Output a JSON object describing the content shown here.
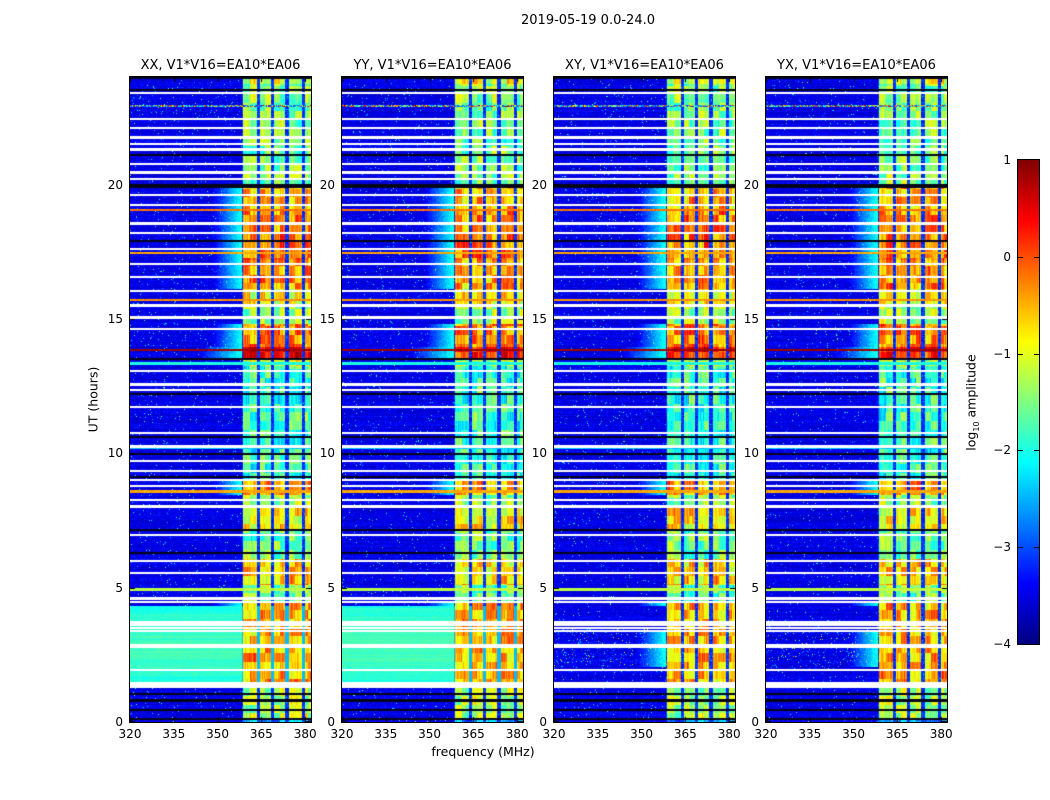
{
  "figure": {
    "suptitle": "2019-05-19 0.0-24.0"
  },
  "chart_data": {
    "type": "heatmap",
    "suptitle": "2019-05-19 0.0-24.0",
    "panels": [
      {
        "pol": "XX",
        "label": "XX, V1*V16=EA10*EA06",
        "correlation": "auto",
        "sun_response": true
      },
      {
        "pol": "YY",
        "label": "YY, V1*V16=EA10*EA06",
        "correlation": "auto",
        "sun_response": true
      },
      {
        "pol": "XY",
        "label": "XY, V1*V16=EA10*EA06",
        "correlation": "cross",
        "sun_response": false
      },
      {
        "pol": "YX",
        "label": "YX, V1*V16=EA10*EA06",
        "correlation": "cross",
        "sun_response": false
      }
    ],
    "x_axis": {
      "label": "frequency (MHz)",
      "ticks": [
        320,
        335,
        350,
        365,
        380
      ],
      "range": [
        320,
        382
      ]
    },
    "y_axis": {
      "label": "UT (hours)",
      "ticks": [
        0,
        5,
        10,
        15,
        20
      ],
      "range": [
        0,
        24
      ]
    },
    "colorbar": {
      "label": "log10 amplitude",
      "label_prefix": "log",
      "label_sub": "10",
      "label_suffix": " amplitude",
      "tick_values": [
        1,
        0,
        -1,
        -2,
        -3,
        -4
      ],
      "tick_labels": [
        "1",
        "0",
        "−1",
        "−2",
        "−3",
        "−4"
      ],
      "range": [
        -4,
        1
      ],
      "colormap": "jet"
    },
    "background_level": -3.5,
    "noise_sigma": 0.3,
    "sun_interval": {
      "t0": 1.47,
      "t1": 4.3,
      "level": -2.0
    },
    "rfi_band": {
      "f_start": 358.4,
      "f_end": 382,
      "columns": [
        [
          358.6,
          363.4
        ],
        [
          364.5,
          368.3
        ],
        [
          369.4,
          373.2
        ],
        [
          374.3,
          379.0
        ],
        [
          380.0,
          382.0
        ]
      ],
      "time_segments": [
        {
          "t0": 23.75,
          "t1": 24.0,
          "level": -1.0
        },
        {
          "t0": 23.2,
          "t1": 23.75,
          "level": -1.45
        },
        {
          "t0": 19.9,
          "t1": 23.2,
          "level": -1.55
        },
        {
          "t0": 19.1,
          "t1": 19.9,
          "level": -0.55
        },
        {
          "t0": 17.2,
          "t1": 19.1,
          "level": -0.3
        },
        {
          "t0": 16.1,
          "t1": 17.2,
          "level": -0.45
        },
        {
          "t0": 15.55,
          "t1": 16.1,
          "level": -0.95
        },
        {
          "t0": 14.8,
          "t1": 15.55,
          "level": -1.35
        },
        {
          "t0": 13.95,
          "t1": 14.8,
          "level": -0.3
        },
        {
          "t0": 13.55,
          "t1": 13.95,
          "level": 0.25
        },
        {
          "t0": 13.25,
          "t1": 13.55,
          "level": -1.2
        },
        {
          "t0": 9.05,
          "t1": 13.25,
          "level": -1.85
        },
        {
          "t0": 8.45,
          "t1": 9.05,
          "level": -0.5
        },
        {
          "t0": 7.95,
          "t1": 8.45,
          "level": -1.35
        },
        {
          "t0": 7.1,
          "t1": 7.95,
          "level": -0.85
        },
        {
          "t0": 6.05,
          "t1": 7.1,
          "level": -1.6
        },
        {
          "t0": 5.1,
          "t1": 6.05,
          "level": -0.7
        },
        {
          "t0": 4.45,
          "t1": 5.1,
          "level": -1.6
        },
        {
          "t0": 1.47,
          "t1": 4.45,
          "level": -0.55
        },
        {
          "t0": 0.15,
          "t1": 1.47,
          "level": -1.3
        },
        {
          "t0": 0.0,
          "t1": 0.15,
          "level": -2.6
        }
      ]
    },
    "flagged_rows_white": [
      23.4,
      22.45,
      22.1,
      21.75,
      21.5,
      21.3,
      20.75,
      20.45,
      20.2,
      19.6,
      19.25,
      18.55,
      18.2,
      17.6,
      17.05,
      16.55,
      16.05,
      15.5,
      15.05,
      14.62,
      13.06,
      12.56,
      12.35,
      11.73,
      10.76,
      10.25,
      9.7,
      9.35,
      9.0,
      8.78,
      8.25,
      8.02,
      6.96,
      6.0,
      5.55,
      4.6,
      4.47,
      3.7,
      3.6,
      3.5,
      3.38,
      2.87,
      2.78,
      1.93
    ],
    "flagged_bands_white": [
      {
        "t0": 1.28,
        "t1": 1.47
      }
    ],
    "dropout_rows_black": [
      23.98,
      23.5,
      21.1,
      19.92,
      19.98,
      17.9,
      13.52,
      12.2,
      10.6,
      9.96,
      9.1,
      7.14,
      6.3,
      1.05,
      0.8,
      0.45,
      0.1
    ],
    "highlight_rows": [
      {
        "t": 13.84,
        "level": 0.85
      },
      {
        "t": 19.05,
        "level": -0.2
      },
      {
        "t": 17.45,
        "level": -0.45
      },
      {
        "t": 15.7,
        "level": -0.35
      },
      {
        "t": 8.57,
        "level": -0.45
      },
      {
        "t": 4.92,
        "level": -1.2
      },
      {
        "t": 22.92,
        "level": -2.6,
        "speckle": true
      },
      {
        "t": 13.35,
        "level": -2.0
      },
      {
        "t": 10.2,
        "level": -2.4
      }
    ]
  }
}
